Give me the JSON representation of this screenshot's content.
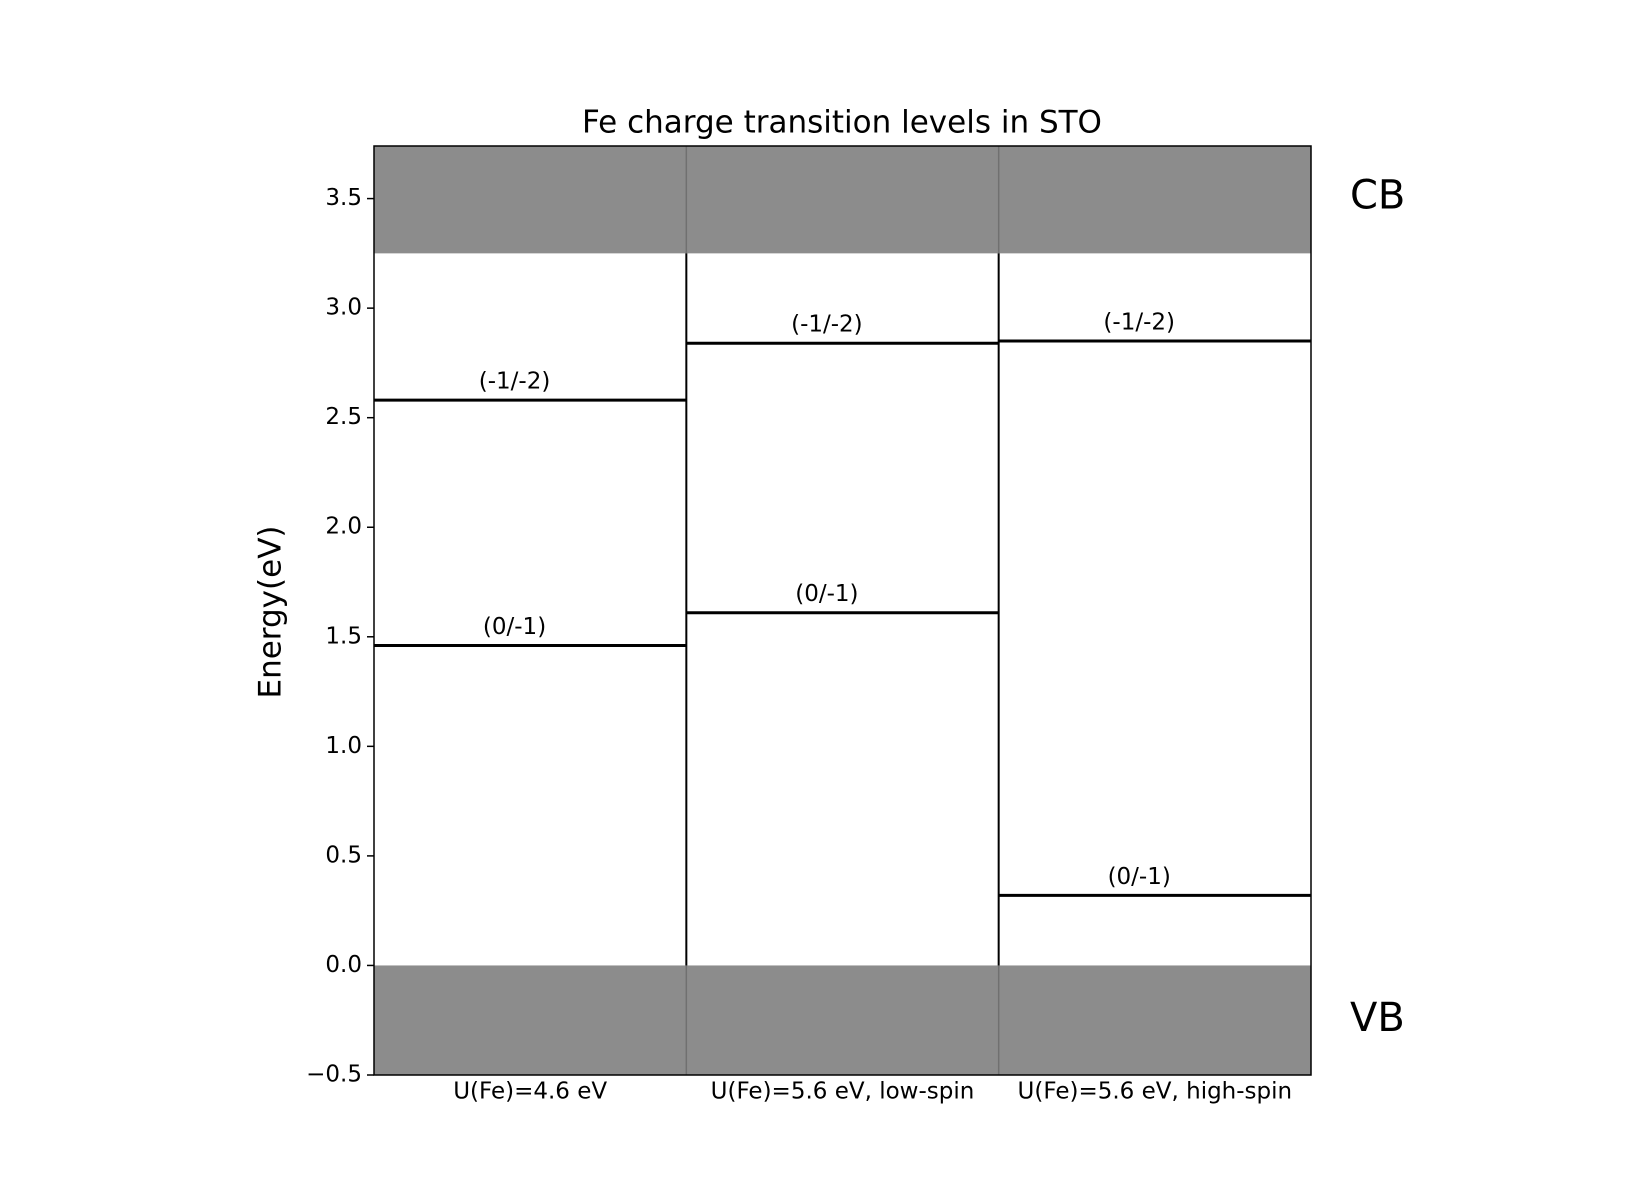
{
  "chart_data": {
    "type": "levels",
    "title": "Fe charge transition levels in STO",
    "y_label": "Energy(eV)",
    "categories": [
      "U(Fe)=4.6 eV",
      "U(Fe)=5.6 eV, low-spin",
      "U(Fe)=5.6 eV, high-spin"
    ],
    "series": [
      {
        "name": "(-1/-2)",
        "color": "#000000",
        "values": [
          2.58,
          2.84,
          2.85
        ]
      },
      {
        "name": "(0/-1)",
        "color": "#000000",
        "values": [
          1.46,
          1.61,
          0.32
        ]
      }
    ],
    "bands": [
      {
        "label": "CB",
        "value": 3.25,
        "color": "#8c8c8c"
      },
      {
        "label": "VB",
        "value": 0,
        "color": "#8c8c8c"
      }
    ],
    "ylim": [
      -0.5,
      3.74
    ],
    "yticks": [
      {
        "value": -0.5,
        "label": "−0.5"
      },
      {
        "value": 0,
        "label": "0.0"
      },
      0.5,
      {
        "value": 1,
        "label": "1.0"
      },
      1.5,
      {
        "value": 2,
        "label": "2.0"
      },
      2.5,
      {
        "value": 3,
        "label": "3.0"
      },
      3.5
    ]
  }
}
